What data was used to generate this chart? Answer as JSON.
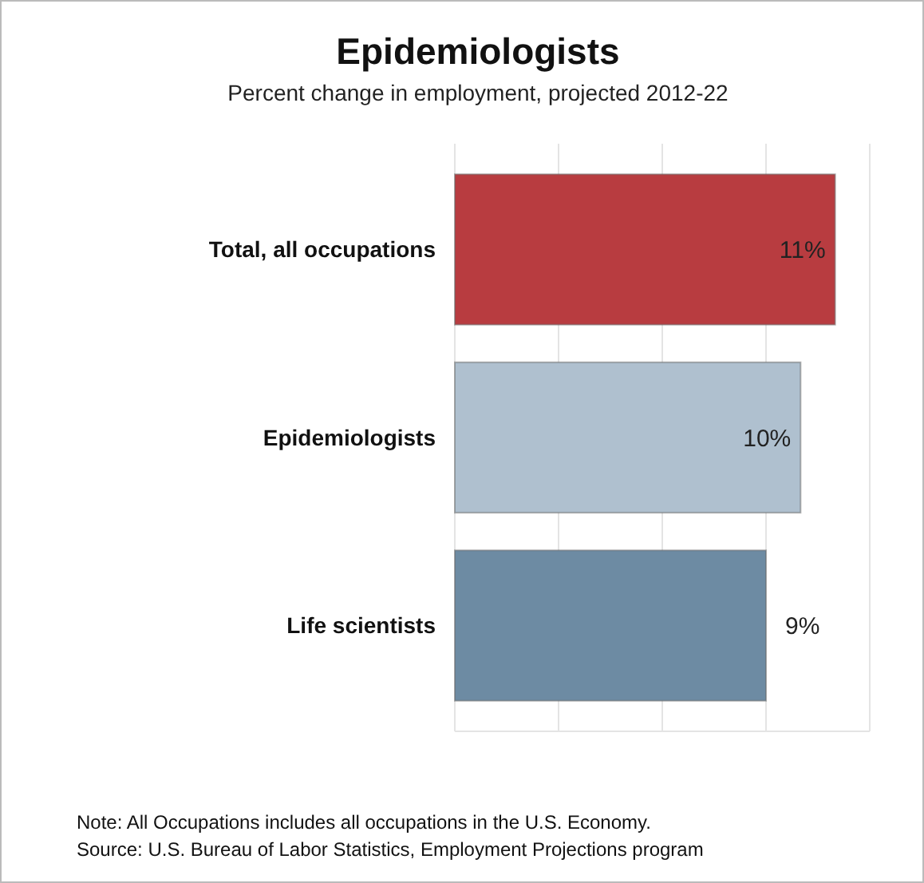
{
  "chart_data": {
    "type": "bar",
    "orientation": "horizontal",
    "title": "Epidemiologists",
    "subtitle": "Percent change in employment, projected 2012-22",
    "categories": [
      "Total, all occupations",
      "Epidemiologists",
      "Life scientists"
    ],
    "values": [
      11,
      10,
      9
    ],
    "colors": [
      "#b83c40",
      "#afc0cf",
      "#6d8ba3"
    ],
    "value_labels": [
      "11%",
      "10%",
      "9%"
    ],
    "xlim": [
      0,
      12
    ],
    "xticks": [
      {
        "value": 0,
        "label": null
      },
      {
        "value": 3,
        "label": null
      },
      {
        "value": 6,
        "label": null
      },
      {
        "value": 9,
        "label": null
      },
      {
        "value": 12,
        "label": null
      }
    ],
    "grid": "x",
    "tick_labels": "y",
    "annotations": [
      "Note: All Occupations includes all occupations in the U.S. Economy.",
      "Source: U.S. Bureau of Labor Statistics, Employment Projections program"
    ]
  }
}
